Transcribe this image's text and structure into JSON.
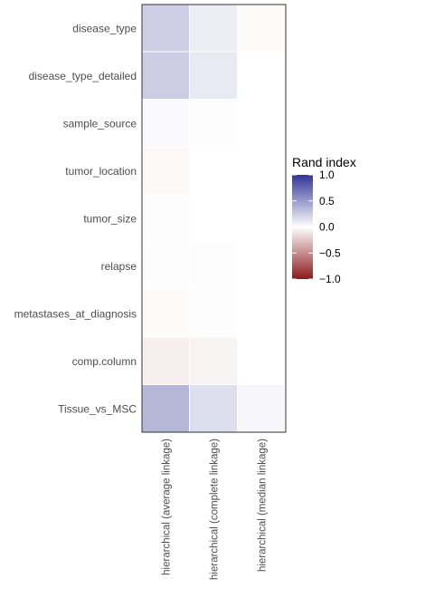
{
  "chart_data": {
    "type": "heatmap",
    "rows": [
      "disease_type",
      "disease_type_detailed",
      "sample_source",
      "tumor_location",
      "tumor_size",
      "relapse",
      "metastases_at_diagnosis",
      "comp.column",
      "Tissue_vs_MSC"
    ],
    "columns": [
      "hierarchical (average linkage)",
      "hierarchical (complete linkage)",
      "hierarchical (median linkage)"
    ],
    "values": [
      [
        0.24,
        0.09,
        -0.02
      ],
      [
        0.25,
        0.11,
        0.0
      ],
      [
        0.03,
        -0.01,
        0.0
      ],
      [
        -0.03,
        0.0,
        0.0
      ],
      [
        -0.01,
        0.0,
        0.0
      ],
      [
        -0.01,
        -0.01,
        0.0
      ],
      [
        -0.02,
        -0.01,
        0.0
      ],
      [
        -0.07,
        -0.05,
        0.0
      ],
      [
        0.36,
        0.16,
        0.04
      ]
    ],
    "legend": {
      "title": "Rand index",
      "ticks": [
        1.0,
        0.5,
        0.0,
        -0.5,
        -1.0
      ],
      "tick_labels": [
        "1.0",
        "0.5",
        "0.0",
        "−0.5",
        "−1.0"
      ],
      "range": [
        -1,
        1
      ],
      "colors": {
        "high": "#313695",
        "mid": "#ffffff",
        "low": "#8b1a1a"
      },
      "position": "right"
    },
    "grid": false
  }
}
